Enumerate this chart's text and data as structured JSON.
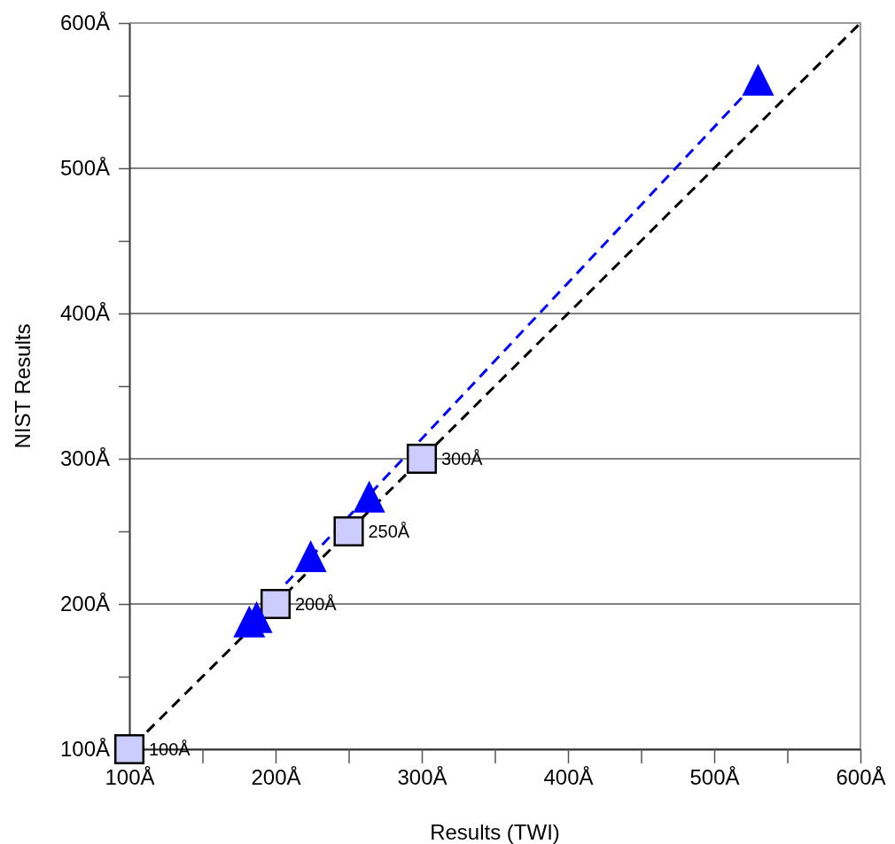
{
  "chart_data": {
    "type": "scatter",
    "xlabel": "Results (TWI)",
    "ylabel": "NIST Results",
    "xlim": [
      100,
      600
    ],
    "ylim": [
      100,
      600
    ],
    "xticks": [
      {
        "value": 100,
        "label": "100Å"
      },
      {
        "value": 150,
        "label": null
      },
      {
        "value": 200,
        "label": "200Å"
      },
      {
        "value": 250,
        "label": null
      },
      {
        "value": 300,
        "label": "300Å"
      },
      {
        "value": 350,
        "label": null
      },
      {
        "value": 400,
        "label": "400Å"
      },
      {
        "value": 450,
        "label": null
      },
      {
        "value": 500,
        "label": "500Å"
      },
      {
        "value": 550,
        "label": null
      },
      {
        "value": 600,
        "label": "600Å"
      }
    ],
    "yticks": [
      {
        "value": 100,
        "label": "100Å"
      },
      {
        "value": 150,
        "label": null
      },
      {
        "value": 200,
        "label": "200Å"
      },
      {
        "value": 250,
        "label": null
      },
      {
        "value": 300,
        "label": "300Å"
      },
      {
        "value": 350,
        "label": null
      },
      {
        "value": 400,
        "label": "400Å"
      },
      {
        "value": 450,
        "label": null
      },
      {
        "value": 500,
        "label": "500Å"
      },
      {
        "value": 550,
        "label": null
      },
      {
        "value": 600,
        "label": "600Å"
      }
    ],
    "grid": "y",
    "series": [
      {
        "type": "line",
        "color": "#000000",
        "line_style": "dashed",
        "marker": "none",
        "x": [
          112,
          600
        ],
        "values": [
          112,
          600
        ]
      },
      {
        "type": "line",
        "color": "#0000ff",
        "line_style": "dashed",
        "marker": "none",
        "x": [
          207,
          522
        ],
        "values": [
          214,
          552
        ]
      },
      {
        "type": "scatter",
        "color": "#ccccff",
        "marker": "square",
        "x": [
          100,
          200,
          250,
          300
        ],
        "values": [
          100,
          200,
          250,
          300
        ],
        "value_labels": [
          "100Å",
          "200Å",
          "250Å",
          "300Å"
        ]
      },
      {
        "color": "#0000ff",
        "marker": "triangle",
        "x": [
          182,
          187,
          224,
          264,
          530
        ],
        "values": [
          188,
          191,
          233,
          274,
          561
        ]
      }
    ]
  }
}
